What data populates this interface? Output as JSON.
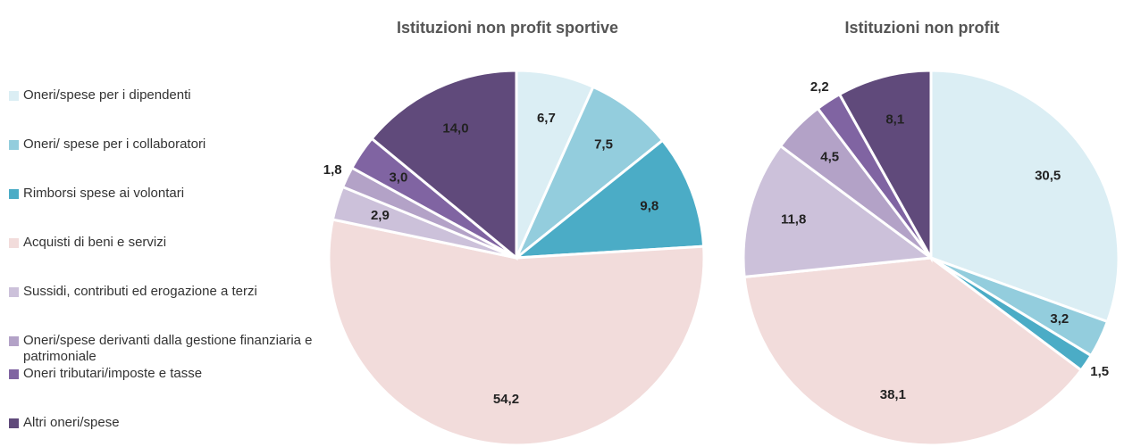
{
  "legend": [
    {
      "name": "Oneri/spese per i dipendenti",
      "color": "#dbeef4"
    },
    {
      "name": "Oneri/ spese per i collaboratori",
      "color": "#93cddd"
    },
    {
      "name": "Rimborsi spese ai volontari",
      "color": "#4bacc6"
    },
    {
      "name": "Acquisti di beni e servizi",
      "color": "#f2dcdb"
    },
    {
      "name": "Sussidi, contributi ed erogazione a terzi",
      "color": "#ccc1da"
    },
    {
      "name": "Oneri/spese derivanti dalla gestione finanziaria e patrimoniale",
      "color": "#b3a2c7"
    },
    {
      "name": "Oneri tributari/imposte e tasse",
      "color": "#8064a2"
    },
    {
      "name": "Altri oneri/spese",
      "color": "#604a7b"
    }
  ],
  "chart_data": [
    {
      "type": "pie",
      "title": "Istituzioni non profit sportive",
      "values": [
        6.7,
        7.5,
        9.8,
        54.2,
        2.9,
        1.8,
        3.0,
        14.0
      ],
      "value_labels": [
        "6,7",
        "7,5",
        "9,8",
        "54,2",
        "2,9",
        "1,8",
        "3,0",
        "14,0"
      ]
    },
    {
      "type": "pie",
      "title": "Istituzioni non profit",
      "values": [
        30.5,
        3.2,
        1.5,
        38.1,
        11.8,
        4.5,
        2.2,
        8.1
      ],
      "value_labels": [
        "30,5",
        "3,2",
        "1,5",
        "38,1",
        "11,8",
        "4,5",
        "2,2",
        "8,1"
      ]
    }
  ]
}
